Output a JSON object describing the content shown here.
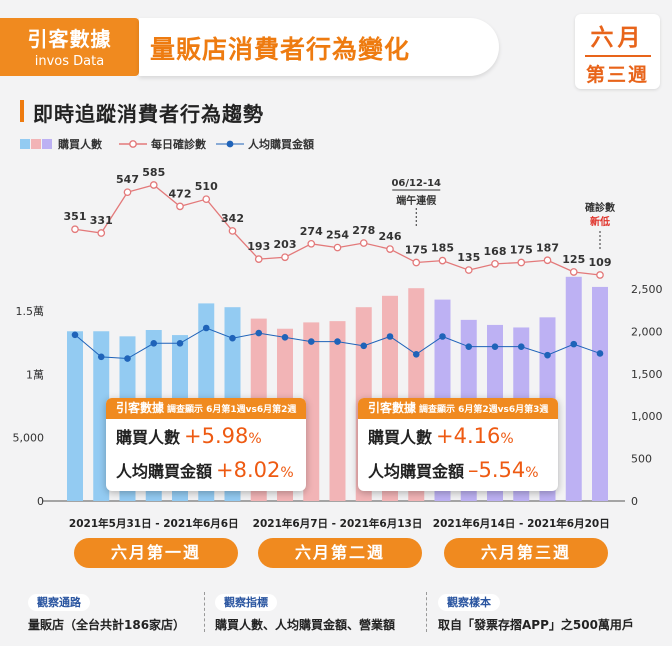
{
  "header": {
    "brand": "引客數據",
    "brand_en": "invos Data",
    "headline": "量販店消費者行為變化",
    "month": "六月",
    "week": "第三週"
  },
  "section_title": "即時追蹤消費者行為趨勢",
  "legend": {
    "purchasers": "購買人數",
    "cases": "每日確診數",
    "avg_spend": "人均購買金額"
  },
  "colors": {
    "week1_bar": "#93cbf2",
    "week2_bar": "#f2b4b6",
    "week3_bar": "#bdb1f3",
    "cases_line": "#e3797a",
    "spend_line": "#1f63b9",
    "accent": "#f08a1f",
    "value_text": "#ee5a12"
  },
  "annotations": {
    "holiday_date": "06/12-14",
    "holiday_name": "端午連假",
    "low_label_1": "確診數",
    "low_label_2": "新低"
  },
  "chart_data": {
    "type": "bar",
    "dates": [
      "5/31",
      "6/1",
      "6/2",
      "6/3",
      "6/4",
      "6/5",
      "6/6",
      "6/7",
      "6/8",
      "6/9",
      "6/10",
      "6/11",
      "6/12",
      "6/13",
      "6/14",
      "6/15",
      "6/16",
      "6/17",
      "6/18",
      "6/19",
      "6/20"
    ],
    "series": [
      {
        "name": "購買人數",
        "axis": "left",
        "values": [
          13400,
          13400,
          13000,
          13500,
          13100,
          15600,
          15300,
          14400,
          13600,
          14100,
          14200,
          15300,
          16200,
          16800,
          15900,
          14300,
          13900,
          13700,
          14500,
          17700,
          16900
        ]
      },
      {
        "name": "每日確診數",
        "axis": "top",
        "values": [
          351,
          331,
          547,
          585,
          472,
          510,
          342,
          193,
          203,
          274,
          254,
          278,
          246,
          175,
          185,
          135,
          168,
          175,
          187,
          125,
          109
        ]
      },
      {
        "name": "人均購買金額",
        "axis": "right",
        "values": [
          1960,
          1700,
          1680,
          1860,
          1860,
          2040,
          1920,
          1980,
          1930,
          1880,
          1880,
          1830,
          1940,
          1730,
          1940,
          1820,
          1820,
          1820,
          1720,
          1850,
          1740
        ]
      }
    ],
    "left_axis": {
      "ticks": [
        "0",
        "5,000",
        "1萬",
        "1.5萬"
      ],
      "tick_values": [
        0,
        5000,
        10000,
        15000
      ],
      "max": 20000
    },
    "right_axis": {
      "ticks": [
        "0",
        "500",
        "1,000",
        "1,500",
        "2,000",
        "2,500"
      ],
      "tick_values": [
        0,
        500,
        1000,
        1500,
        2000,
        2500
      ],
      "max": 2500
    },
    "week_ranges": [
      "2021年5月31日 - 2021年6月6日",
      "2021年6月7日 - 2021年6月13日",
      "2021年6月14日 - 2021年6月20日"
    ],
    "week_labels": [
      "六月第一週",
      "六月第二週",
      "六月第三週"
    ]
  },
  "cards": [
    {
      "brand": "引客數據",
      "note": "調查顯示 6月第1週vs6月第2週",
      "row1_label": "購買人數",
      "row1_value": "+5.98",
      "row1_unit": "%",
      "row2_label": "人均購買金額",
      "row2_value": "+8.02",
      "row2_unit": "%"
    },
    {
      "brand": "引客數據",
      "note": "調查顯示 6月第2週vs6月第3週",
      "row1_label": "購買人數",
      "row1_value": "+4.16",
      "row1_unit": "%",
      "row2_label": "人均購買金額",
      "row2_value": "–5.54",
      "row2_unit": "%"
    }
  ],
  "footer": [
    {
      "tag": "觀察通路",
      "text": "量販店（全台共計186家店）"
    },
    {
      "tag": "觀察指標",
      "text": "購買人數、人均購買金額、營業額"
    },
    {
      "tag": "觀察樣本",
      "text": "取自「發票存摺APP」之500萬用戶"
    }
  ]
}
